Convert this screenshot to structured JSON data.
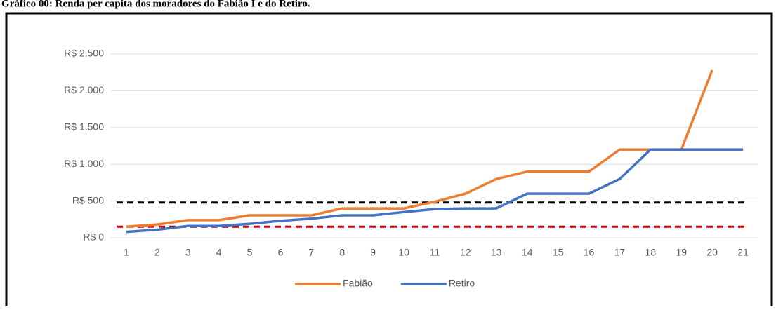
{
  "chart_data": {
    "type": "line",
    "title": "Gráfico 00: Renda per capita dos moradores do Fabião I e do Retiro.",
    "categories": [
      "1",
      "2",
      "3",
      "4",
      "5",
      "6",
      "7",
      "8",
      "9",
      "10",
      "11",
      "12",
      "13",
      "14",
      "15",
      "16",
      "17",
      "18",
      "19",
      "20",
      "21"
    ],
    "series": [
      {
        "name": "Fabião",
        "color": "#ed7d31",
        "values": [
          150,
          180,
          240,
          240,
          305,
          305,
          305,
          400,
          400,
          400,
          490,
          600,
          800,
          900,
          900,
          900,
          1200,
          1200,
          1200,
          2280,
          null
        ]
      },
      {
        "name": "Retiro",
        "color": "#4472c4",
        "values": [
          80,
          110,
          160,
          160,
          190,
          230,
          260,
          305,
          305,
          350,
          390,
          400,
          400,
          600,
          600,
          600,
          800,
          1200,
          1200,
          1200,
          1200
        ]
      }
    ],
    "reference_lines": [
      {
        "value": 480,
        "color": "#000000"
      },
      {
        "value": 150,
        "color": "#c00000"
      }
    ],
    "ylim": [
      0,
      2500
    ],
    "yticks": [
      {
        "value": 0,
        "label": "R$ 0"
      },
      {
        "value": 500,
        "label": "R$ 500"
      },
      {
        "value": 1000,
        "label": "R$ 1.000"
      },
      {
        "value": 1500,
        "label": "R$ 1.500"
      },
      {
        "value": 2000,
        "label": "R$ 2.000"
      },
      {
        "value": 2500,
        "label": "R$ 2.500"
      }
    ],
    "grid": true,
    "legend": "bottom"
  }
}
